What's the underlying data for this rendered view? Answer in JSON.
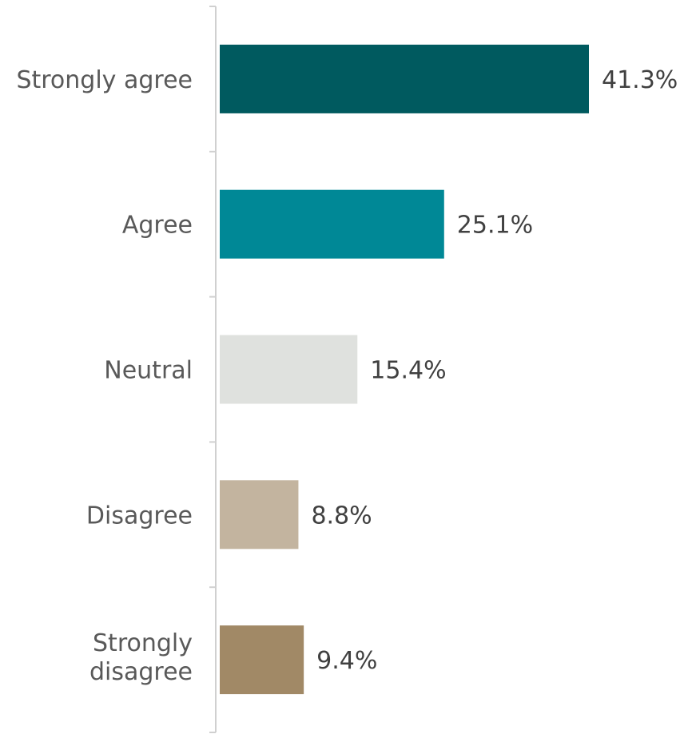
{
  "chart_data": {
    "type": "bar",
    "orientation": "horizontal",
    "title": "",
    "xlabel": "",
    "ylabel": "",
    "categories": [
      "Strongly agree",
      "Agree",
      "Neutral",
      "Disagree",
      "Strongly disagree"
    ],
    "values": [
      41.3,
      25.1,
      15.4,
      8.8,
      9.4
    ],
    "value_labels": [
      "41.3%",
      "25.1%",
      "15.4%",
      "8.8%",
      "9.4%"
    ],
    "colors": [
      "#005a5f",
      "#008896",
      "#dfe1de",
      "#c3b49f",
      "#a18966"
    ],
    "xlim": [
      0,
      45
    ],
    "grid": false,
    "legend": "none"
  }
}
